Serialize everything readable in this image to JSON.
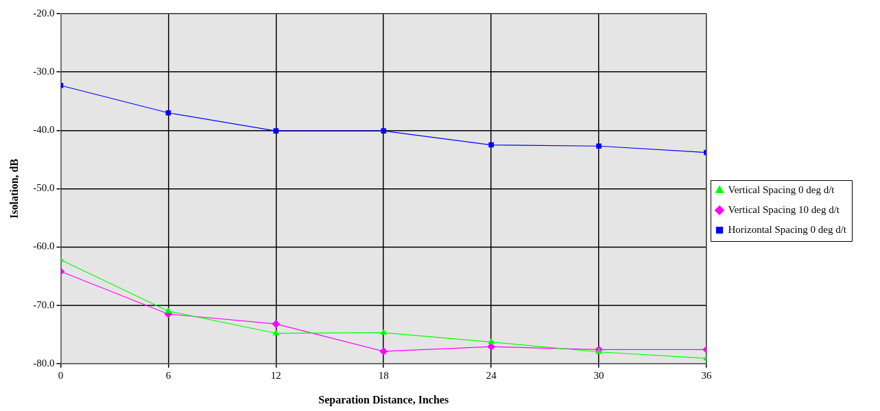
{
  "chart_data": {
    "type": "line",
    "xlabel": "Separation Distance, Inches",
    "ylabel": "Isolation, dB",
    "x": [
      0,
      6,
      12,
      18,
      24,
      30,
      36
    ],
    "xlim": [
      0,
      36
    ],
    "xticks": [
      0,
      6,
      12,
      18,
      24,
      30,
      36
    ],
    "ylim": [
      -80,
      -20
    ],
    "yticks": [
      {
        "value": -80,
        "label": "-80.0"
      },
      {
        "value": -70,
        "label": "-70.0"
      },
      {
        "value": -60,
        "label": "-60.0"
      },
      {
        "value": -50,
        "label": "-50.0"
      },
      {
        "value": -40,
        "label": "-40.0"
      },
      {
        "value": -30,
        "label": "-30.0"
      },
      {
        "value": -20,
        "label": "-20.0"
      }
    ],
    "grid": true,
    "legend": "right",
    "line_style": "solid",
    "series": [
      {
        "name": "Vertical Spacing 0 deg d/t",
        "color": "#00ff00",
        "marker": "triangle",
        "values": [
          -62.2,
          -71.0,
          -74.8,
          -74.7,
          -76.3,
          -78.0,
          -79.1
        ]
      },
      {
        "name": "Vertical Spacing 10 deg d/t",
        "color": "#ff00ff",
        "marker": "diamond",
        "values": [
          -64.2,
          -71.5,
          -73.2,
          -77.9,
          -77.1,
          -77.6,
          -77.6
        ]
      },
      {
        "name": "Horizontal Spacing 0 deg d/t",
        "color": "#0000ff",
        "marker": "square",
        "values": [
          -32.3,
          -37.0,
          -40.1,
          -40.1,
          -42.5,
          -42.7,
          -43.8
        ]
      }
    ]
  }
}
